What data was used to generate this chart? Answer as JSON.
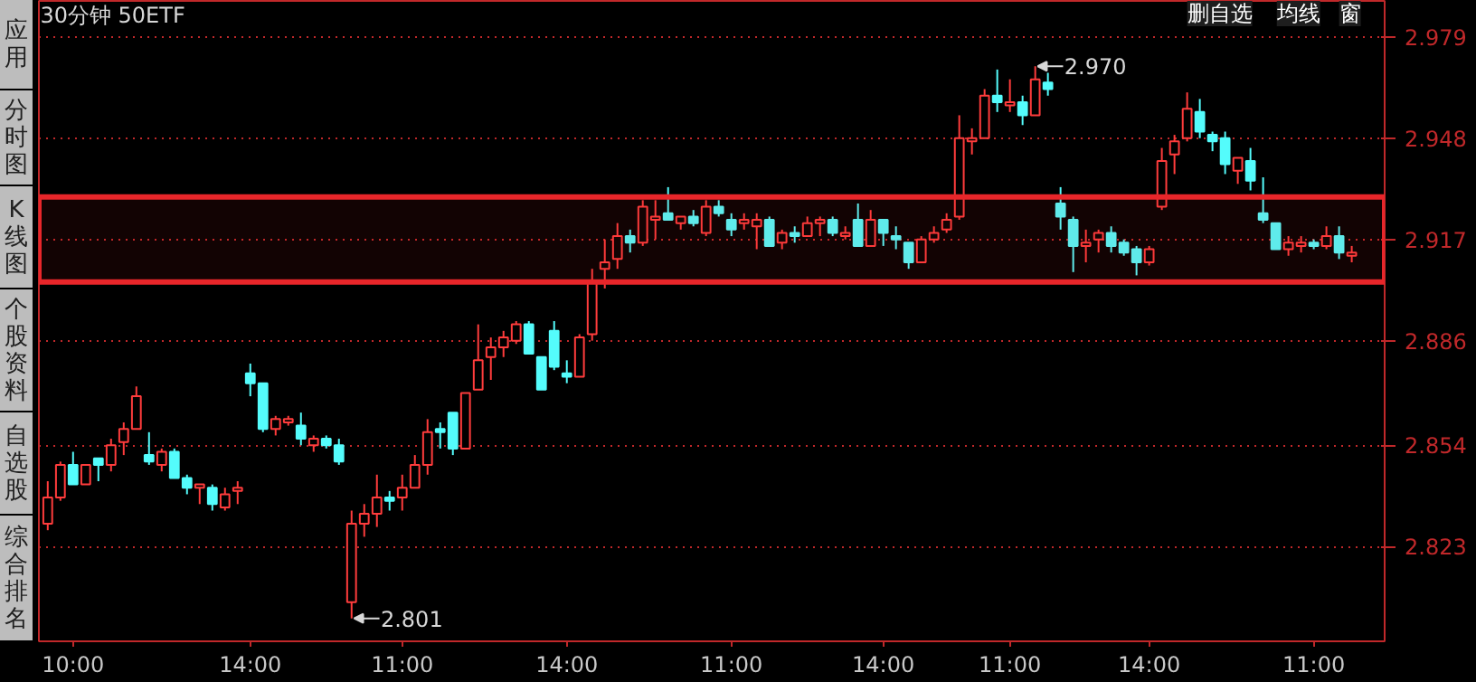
{
  "chart_data": {
    "type": "candlestick",
    "title": "30分钟 50ETF",
    "categories": [
      null,
      null,
      "10:00",
      null,
      null,
      null,
      null,
      null,
      null,
      null,
      null,
      null,
      null,
      null,
      null,
      null,
      "14:00",
      null,
      null,
      null,
      null,
      null,
      null,
      null,
      null,
      null,
      null,
      null,
      "11:00",
      null,
      null,
      null,
      null,
      null,
      null,
      null,
      null,
      null,
      null,
      null,
      null,
      "14:00",
      null,
      null,
      null,
      null,
      null,
      null,
      null,
      null,
      null,
      null,
      null,
      null,
      "11:00",
      null,
      null,
      null,
      null,
      null,
      null,
      null,
      null,
      null,
      null,
      null,
      "14:00",
      null,
      null,
      null,
      null,
      null,
      null,
      null,
      null,
      null,
      "11:00",
      null,
      null,
      null,
      null,
      null,
      null,
      null,
      null,
      null,
      null,
      "14:00",
      null,
      null,
      null,
      null,
      null,
      null,
      null,
      null,
      null,
      null,
      null,
      null,
      "11:00",
      null,
      null,
      null
    ],
    "ohlc": [
      [
        2.83,
        2.843,
        2.828,
        2.838
      ],
      [
        2.838,
        2.849,
        2.837,
        2.848
      ],
      [
        2.848,
        2.852,
        2.842,
        2.842
      ],
      [
        2.842,
        2.848,
        2.842,
        2.848
      ],
      [
        2.85,
        2.85,
        2.843,
        2.848
      ],
      [
        2.848,
        2.856,
        2.846,
        2.854
      ],
      [
        2.855,
        2.861,
        2.851,
        2.859
      ],
      [
        2.859,
        2.872,
        2.859,
        2.869
      ],
      [
        2.851,
        2.858,
        2.848,
        2.849
      ],
      [
        2.848,
        2.853,
        2.846,
        2.852
      ],
      [
        2.852,
        2.853,
        2.844,
        2.844
      ],
      [
        2.844,
        2.845,
        2.839,
        2.841
      ],
      [
        2.841,
        2.842,
        2.836,
        2.842
      ],
      [
        2.841,
        2.842,
        2.834,
        2.836
      ],
      [
        2.835,
        2.841,
        2.834,
        2.839
      ],
      [
        2.84,
        2.843,
        2.836,
        2.841
      ],
      [
        2.876,
        2.879,
        2.869,
        2.873
      ],
      [
        2.873,
        2.873,
        2.858,
        2.859
      ],
      [
        2.859,
        2.863,
        2.857,
        2.862
      ],
      [
        2.861,
        2.863,
        2.86,
        2.862
      ],
      [
        2.86,
        2.864,
        2.854,
        2.856
      ],
      [
        2.854,
        2.857,
        2.852,
        2.856
      ],
      [
        2.856,
        2.857,
        2.853,
        2.854
      ],
      [
        2.854,
        2.856,
        2.848,
        2.849
      ],
      [
        2.806,
        2.834,
        2.801,
        2.83
      ],
      [
        2.83,
        2.836,
        2.826,
        2.833
      ],
      [
        2.833,
        2.845,
        2.829,
        2.838
      ],
      [
        2.838,
        2.84,
        2.834,
        2.837
      ],
      [
        2.838,
        2.845,
        2.834,
        2.841
      ],
      [
        2.841,
        2.851,
        2.841,
        2.848
      ],
      [
        2.848,
        2.862,
        2.845,
        2.858
      ],
      [
        2.859,
        2.861,
        2.853,
        2.858
      ],
      [
        2.864,
        2.864,
        2.851,
        2.853
      ],
      [
        2.853,
        2.87,
        2.853,
        2.87
      ],
      [
        2.871,
        2.891,
        2.871,
        2.88
      ],
      [
        2.881,
        2.887,
        2.874,
        2.884
      ],
      [
        2.884,
        2.889,
        2.881,
        2.887
      ],
      [
        2.886,
        2.892,
        2.885,
        2.891
      ],
      [
        2.891,
        2.892,
        2.882,
        2.882
      ],
      [
        2.881,
        2.881,
        2.871,
        2.871
      ],
      [
        2.889,
        2.892,
        2.877,
        2.878
      ],
      [
        2.876,
        2.88,
        2.873,
        2.875
      ],
      [
        2.875,
        2.888,
        2.875,
        2.887
      ],
      [
        2.888,
        2.908,
        2.886,
        2.904
      ],
      [
        2.908,
        2.917,
        2.902,
        2.91
      ],
      [
        2.911,
        2.922,
        2.908,
        2.918
      ],
      [
        2.918,
        2.92,
        2.913,
        2.916
      ],
      [
        2.916,
        2.929,
        2.915,
        2.927
      ],
      [
        2.923,
        2.929,
        2.917,
        2.924
      ],
      [
        2.925,
        2.933,
        2.923,
        2.923
      ],
      [
        2.922,
        2.924,
        2.92,
        2.924
      ],
      [
        2.924,
        2.926,
        2.921,
        2.922
      ],
      [
        2.919,
        2.929,
        2.918,
        2.927
      ],
      [
        2.927,
        2.929,
        2.924,
        2.925
      ],
      [
        2.923,
        2.925,
        2.918,
        2.92
      ],
      [
        2.922,
        2.925,
        2.92,
        2.923
      ],
      [
        2.921,
        2.925,
        2.914,
        2.923
      ],
      [
        2.923,
        2.924,
        2.915,
        2.915
      ],
      [
        2.916,
        2.92,
        2.914,
        2.919
      ],
      [
        2.919,
        2.921,
        2.916,
        2.918
      ],
      [
        2.918,
        2.924,
        2.918,
        2.922
      ],
      [
        2.922,
        2.924,
        2.918,
        2.923
      ],
      [
        2.923,
        2.924,
        2.918,
        2.919
      ],
      [
        2.918,
        2.921,
        2.917,
        2.919
      ],
      [
        2.923,
        2.928,
        2.915,
        2.915
      ],
      [
        2.915,
        2.926,
        2.915,
        2.923
      ],
      [
        2.923,
        2.923,
        2.915,
        2.919
      ],
      [
        2.918,
        2.921,
        2.914,
        2.917
      ],
      [
        2.916,
        2.916,
        2.908,
        2.91
      ],
      [
        2.91,
        2.918,
        2.91,
        2.917
      ],
      [
        2.917,
        2.921,
        2.916,
        2.919
      ],
      [
        2.92,
        2.925,
        2.919,
        2.923
      ],
      [
        2.924,
        2.955,
        2.923,
        2.948
      ],
      [
        2.947,
        2.951,
        2.943,
        2.948
      ],
      [
        2.948,
        2.963,
        2.948,
        2.961
      ],
      [
        2.961,
        2.969,
        2.956,
        2.959
      ],
      [
        2.958,
        2.966,
        2.956,
        2.959
      ],
      [
        2.959,
        2.961,
        2.952,
        2.955
      ],
      [
        2.955,
        2.97,
        2.955,
        2.966
      ],
      [
        2.965,
        2.968,
        2.961,
        2.963
      ],
      [
        2.928,
        2.933,
        2.92,
        2.924
      ],
      [
        2.923,
        2.924,
        2.907,
        2.915
      ],
      [
        2.915,
        2.92,
        2.91,
        2.916
      ],
      [
        2.917,
        2.92,
        2.913,
        2.919
      ],
      [
        2.919,
        2.921,
        2.913,
        2.915
      ],
      [
        2.916,
        2.917,
        2.912,
        2.913
      ],
      [
        2.914,
        2.915,
        2.906,
        2.91
      ],
      [
        2.91,
        2.915,
        2.909,
        2.914
      ],
      [
        2.927,
        2.945,
        2.926,
        2.941
      ],
      [
        2.943,
        2.949,
        2.937,
        2.947
      ],
      [
        2.948,
        2.962,
        2.947,
        2.957
      ],
      [
        2.956,
        2.96,
        2.948,
        2.95
      ],
      [
        2.949,
        2.95,
        2.944,
        2.947
      ],
      [
        2.948,
        2.95,
        2.937,
        2.94
      ],
      [
        2.938,
        2.942,
        2.934,
        2.942
      ],
      [
        2.941,
        2.945,
        2.932,
        2.935
      ],
      [
        2.925,
        2.936,
        2.922,
        2.923
      ],
      [
        2.922,
        2.922,
        2.914,
        2.914
      ],
      [
        2.914,
        2.918,
        2.912,
        2.916
      ],
      [
        2.915,
        2.918,
        2.913,
        2.916
      ],
      [
        2.916,
        2.917,
        2.914,
        2.915
      ],
      [
        2.915,
        2.921,
        2.914,
        2.918
      ],
      [
        2.918,
        2.921,
        2.911,
        2.913
      ],
      [
        2.912,
        2.915,
        2.91,
        2.913
      ]
    ],
    "ylim": [
      2.794,
      2.99
    ],
    "yticks": [
      2.823,
      2.854,
      2.886,
      2.917,
      2.948,
      2.979
    ],
    "grid": "y",
    "bands": [
      {
        "axis": "y",
        "from": 2.904,
        "to": 2.93,
        "color": "#e8262a"
      }
    ],
    "annotations": [
      "2.970",
      "2.801",
      "应用",
      "分时图",
      "K线图",
      "个股资料",
      "自选股",
      "综合排名",
      "删自选",
      "均线",
      "窗"
    ]
  }
}
